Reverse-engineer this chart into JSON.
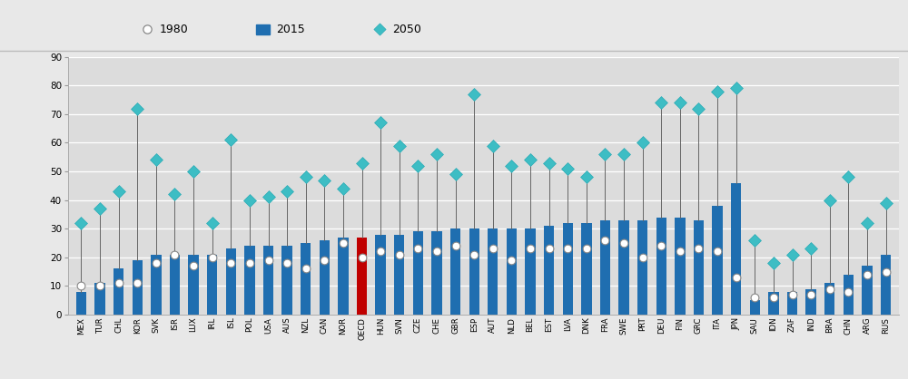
{
  "countries": [
    "MEX",
    "TUR",
    "CHL",
    "KOR",
    "SVK",
    "ISR",
    "LUX",
    "IRL",
    "ISL",
    "POL",
    "USA",
    "AUS",
    "NZL",
    "CAN",
    "NOR",
    "OECD",
    "HUN",
    "SVN",
    "CZE",
    "CHE",
    "GBR",
    "ESP",
    "AUT",
    "NLD",
    "BEL",
    "EST",
    "LVA",
    "DNK",
    "FRA",
    "SWE",
    "PRT",
    "DEU",
    "FIN",
    "GRC",
    "ITA",
    "JPN",
    "SAU",
    "IDN",
    "ZAF",
    "IND",
    "BRA",
    "CHN",
    "ARG",
    "RUS"
  ],
  "bar2015": [
    8,
    11,
    16,
    19,
    21,
    21,
    21,
    21,
    23,
    24,
    24,
    24,
    25,
    26,
    27,
    27,
    28,
    28,
    29,
    29,
    30,
    30,
    30,
    30,
    30,
    31,
    32,
    32,
    33,
    33,
    33,
    34,
    34,
    33,
    38,
    46,
    5,
    8,
    8,
    9,
    11,
    14,
    17,
    21
  ],
  "val1980": [
    10,
    10,
    11,
    11,
    18,
    21,
    17,
    20,
    18,
    18,
    19,
    18,
    16,
    19,
    25,
    20,
    22,
    21,
    23,
    22,
    24,
    21,
    23,
    19,
    23,
    23,
    23,
    23,
    26,
    25,
    20,
    24,
    22,
    23,
    22,
    13,
    6,
    6,
    7,
    7,
    9,
    8,
    14,
    15
  ],
  "val2050": [
    32,
    37,
    43,
    72,
    54,
    42,
    50,
    32,
    61,
    40,
    41,
    43,
    48,
    47,
    44,
    53,
    67,
    59,
    52,
    56,
    49,
    77,
    59,
    52,
    54,
    53,
    51,
    48,
    56,
    56,
    60,
    74,
    74,
    72,
    78,
    79,
    26,
    18,
    21,
    23,
    40,
    48,
    32,
    39
  ],
  "oecd_index": 15,
  "bar_color_normal": "#1F6EB0",
  "bar_color_oecd": "#C00000",
  "diamond_color": "#3DBDC4",
  "circle_color": "white",
  "circle_edge": "#888888",
  "plot_bg_color": "#DCDCDC",
  "fig_bg_color": "#E8E8E8",
  "grid_color": "white",
  "ylim": [
    0,
    90
  ],
  "yticks": [
    0,
    10,
    20,
    30,
    40,
    50,
    60,
    70,
    80,
    90
  ]
}
